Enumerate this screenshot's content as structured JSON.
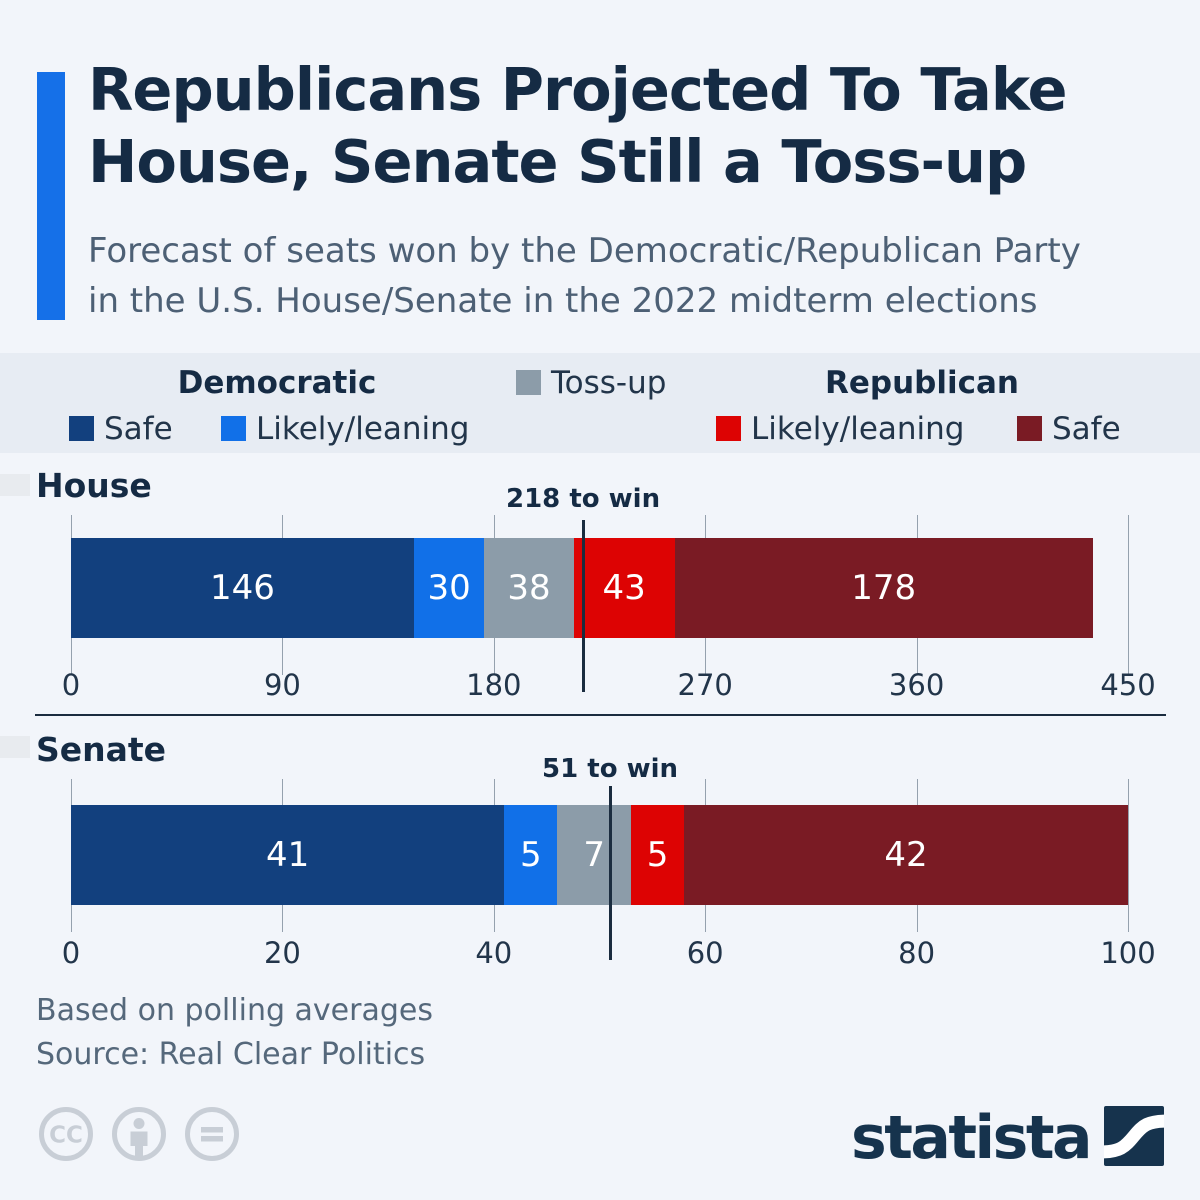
{
  "colors": {
    "background": "#f2f5fa",
    "legend_band": "#e7ecf3",
    "accent": "#1570e8",
    "title_text": "#152b44",
    "subtitle_text": "#4d6075",
    "axis_text": "#22354a",
    "gridline": "#95a1ae",
    "divider": "#1b2c3f",
    "dem_safe": "#12407e",
    "dem_likely": "#1170e8",
    "tossup": "#8c9ca9",
    "rep_likely": "#dd0303",
    "rep_safe": "#7a1b24",
    "brand_navy": "#16334d",
    "license_icon_gray": "#c8ced6"
  },
  "header": {
    "title_line1": "Republicans Projected To Take",
    "title_line2": "House, Senate Still a Toss-up",
    "subtitle_line1": "Forecast of seats won by the Democratic/Republican Party",
    "subtitle_line2": "in the U.S. House/Senate in the 2022 midterm elections"
  },
  "legend": {
    "democratic_header": "Democratic",
    "republican_header": "Republican",
    "tossup_label": "Toss-up",
    "dem_safe_label": "Safe",
    "dem_likely_label": "Likely/leaning",
    "rep_likely_label": "Likely/leaning",
    "rep_safe_label": "Safe"
  },
  "chart_data": [
    {
      "type": "bar",
      "orientation": "horizontal-stacked",
      "title": "House",
      "categories": [
        "Democratic safe",
        "Democratic likely/leaning",
        "Toss-up",
        "Republican likely/leaning",
        "Republican safe"
      ],
      "values": [
        146,
        30,
        38,
        43,
        178
      ],
      "segment_colors": [
        "#12407e",
        "#1170e8",
        "#8c9ca9",
        "#dd0303",
        "#7a1b24"
      ],
      "xlim": [
        0,
        450
      ],
      "ticks": [
        0,
        90,
        180,
        270,
        360,
        450
      ],
      "grid": true,
      "threshold": {
        "value": 218,
        "label": "218 to win"
      }
    },
    {
      "type": "bar",
      "orientation": "horizontal-stacked",
      "title": "Senate",
      "categories": [
        "Democratic safe",
        "Democratic likely/leaning",
        "Toss-up",
        "Republican likely/leaning",
        "Republican safe"
      ],
      "values": [
        41,
        5,
        7,
        5,
        42
      ],
      "segment_colors": [
        "#12407e",
        "#1170e8",
        "#8c9ca9",
        "#dd0303",
        "#7a1b24"
      ],
      "xlim": [
        0,
        100
      ],
      "ticks": [
        0,
        20,
        40,
        60,
        80,
        100
      ],
      "grid": true,
      "threshold": {
        "value": 51,
        "label": "51 to win"
      }
    }
  ],
  "footer": {
    "note": "Based on polling averages",
    "source": "Source: Real Clear Politics"
  },
  "branding": {
    "wordmark": "statista"
  },
  "license": {
    "icons": [
      "cc-icon",
      "by-icon",
      "nd-icon"
    ]
  }
}
